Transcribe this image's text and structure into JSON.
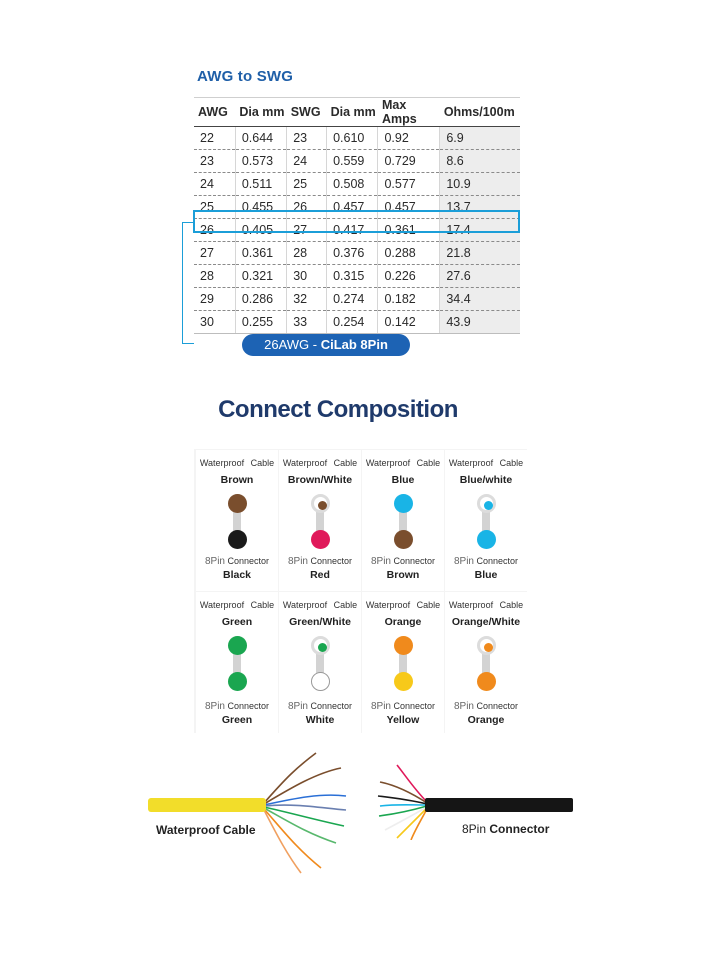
{
  "awg": {
    "title": "AWG to SWG",
    "headers": [
      "AWG",
      "Dia mm",
      "SWG",
      "Dia mm",
      "Max Amps",
      "Ohms/100m"
    ],
    "rows": [
      [
        "22",
        "0.644",
        "23",
        "0.610",
        "0.92",
        "6.9"
      ],
      [
        "23",
        "0.573",
        "24",
        "0.559",
        "0.729",
        "8.6"
      ],
      [
        "24",
        "0.511",
        "25",
        "0.508",
        "0.577",
        "10.9"
      ],
      [
        "25",
        "0.455",
        "26",
        "0.457",
        "0.457",
        "13.7"
      ],
      [
        "26",
        "0.405",
        "27",
        "0.417",
        "0.361",
        "17.4"
      ],
      [
        "27",
        "0.361",
        "28",
        "0.376",
        "0.288",
        "21.8"
      ],
      [
        "28",
        "0.321",
        "30",
        "0.315",
        "0.226",
        "27.6"
      ],
      [
        "29",
        "0.286",
        "32",
        "0.274",
        "0.182",
        "34.4"
      ],
      [
        "30",
        "0.255",
        "33",
        "0.254",
        "0.142",
        "43.9"
      ]
    ],
    "highlight_row": 4,
    "highlight_color": "#1b9ed8",
    "badge_prefix": "26AWG - ",
    "badge_brand": "CiLab 8Pin",
    "badge_color": "#1d63b4"
  },
  "composition": {
    "title": "Connect Composition",
    "header_label": "Waterproof  Cable",
    "pin_number": "8Pin",
    "pin_word": "Connector",
    "cells": [
      {
        "wire": "Brown",
        "connector": "Black",
        "top_color": "#7a4e2d",
        "bottom_color": "#1a1a1a",
        "striped": false
      },
      {
        "wire": "Brown/White",
        "connector": "Red",
        "top_color": "#7a4e2d",
        "bottom_color": "#e0195a",
        "striped": true
      },
      {
        "wire": "Blue",
        "connector": "Brown",
        "top_color": "#19b4e6",
        "bottom_color": "#7a4e2d",
        "striped": false
      },
      {
        "wire": "Blue/white",
        "connector": "Blue",
        "top_color": "#19b4e6",
        "bottom_color": "#19b4e6",
        "striped": true
      },
      {
        "wire": "Green",
        "connector": "Green",
        "top_color": "#1aa650",
        "bottom_color": "#1aa650",
        "striped": false
      },
      {
        "wire": "Green/White",
        "connector": "White",
        "top_color": "#1aa650",
        "bottom_color": "#ffffff",
        "striped": true
      },
      {
        "wire": "Orange",
        "connector": "Yellow",
        "top_color": "#f08a1c",
        "bottom_color": "#f7c91a",
        "striped": false
      },
      {
        "wire": "Orange/White",
        "connector": "Orange",
        "top_color": "#f08a1c",
        "bottom_color": "#f08a1c",
        "striped": true
      }
    ]
  },
  "cables": {
    "left_label": "Waterproof Cable",
    "right_label_num": "8Pin",
    "right_label_word": "Connector",
    "left_jacket_color": "#f2dd2a",
    "right_jacket_color": "#151515"
  }
}
